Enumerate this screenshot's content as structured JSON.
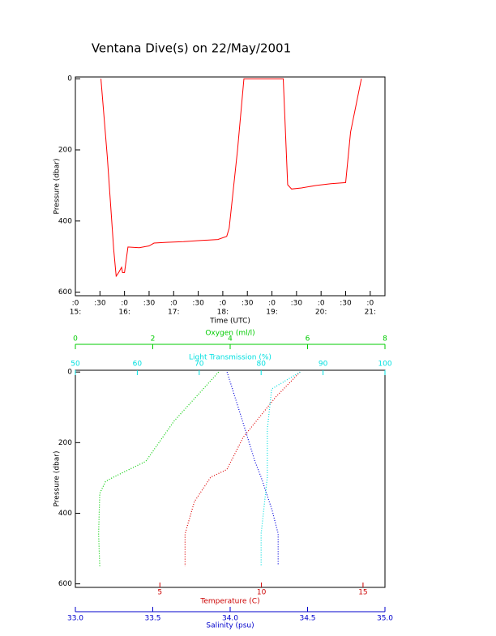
{
  "chart_data": [
    {
      "type": "line",
      "title": "Ventana Dive(s) on 22/May/2001",
      "x_label": "Time (UTC)",
      "y_label": "Pressure (dbar)",
      "xlim": [
        15,
        21.3
      ],
      "ylim": [
        -5,
        610
      ],
      "y_inverted": true,
      "xticks": [
        {
          "value": 15,
          "label": ":0"
        },
        {
          "value": 15.5,
          "label": ":30"
        },
        {
          "value": 16,
          "label": ":0"
        },
        {
          "value": 16.5,
          "label": ":30"
        },
        {
          "value": 17,
          "label": ":0"
        },
        {
          "value": 17.5,
          "label": ":30"
        },
        {
          "value": 18,
          "label": ":0"
        },
        {
          "value": 18.5,
          "label": ":30"
        },
        {
          "value": 19,
          "label": ":0"
        },
        {
          "value": 19.5,
          "label": ":30"
        },
        {
          "value": 20,
          "label": ":0"
        },
        {
          "value": 20.5,
          "label": ":30"
        },
        {
          "value": 21,
          "label": ":0"
        }
      ],
      "xticks_hours": [
        {
          "value": 15,
          "label": "15:"
        },
        {
          "value": 16,
          "label": "16:"
        },
        {
          "value": 17,
          "label": "17:"
        },
        {
          "value": 18,
          "label": "18:"
        },
        {
          "value": 19,
          "label": "19:"
        },
        {
          "value": 20,
          "label": "20:"
        },
        {
          "value": 21,
          "label": "21:"
        }
      ],
      "yticks": [
        0,
        200,
        400,
        600
      ],
      "series": [
        {
          "color": "#ff0000",
          "x": [
            15.52,
            15.65,
            15.78,
            15.83,
            15.88,
            15.94,
            15.96,
            16.0,
            16.07,
            16.3,
            16.5,
            16.6,
            16.85,
            17.2,
            17.5,
            17.9,
            18.08,
            18.13,
            18.3,
            18.43,
            19.23,
            19.32,
            19.4,
            19.6,
            19.9,
            20.2,
            20.5,
            20.6,
            20.82
          ],
          "values": [
            0,
            220,
            480,
            555,
            545,
            530,
            545,
            545,
            473,
            475,
            470,
            462,
            460,
            458,
            455,
            452,
            443,
            420,
            200,
            0,
            0,
            298,
            310,
            307,
            300,
            295,
            292,
            150,
            0
          ]
        }
      ]
    },
    {
      "type": "profile",
      "y_label": "Pressure (dbar)",
      "ylim": [
        -5,
        610
      ],
      "y_inverted": true,
      "yticks": [
        0,
        200,
        400,
        600
      ],
      "axes": {
        "temperature": {
          "label": "Temperature (C)",
          "color": "#cc0000",
          "lim": [
            0.84,
            16.08
          ],
          "ticks": [
            5,
            10,
            15
          ]
        },
        "salinity": {
          "label": "Salinity (psu)",
          "color": "#0000cc",
          "lim": [
            33.0,
            35.0
          ],
          "ticks": [
            {
              "value": 33,
              "label": "33.0"
            },
            {
              "value": 33.5,
              "label": "33.5"
            },
            {
              "value": 34,
              "label": "34.0"
            },
            {
              "value": 34.5,
              "label": "34.5"
            },
            {
              "value": 35,
              "label": "35.0"
            }
          ]
        },
        "oxygen": {
          "label": "Oxygen (ml/l)",
          "color": "#00cc00",
          "lim": [
            0,
            8
          ],
          "ticks": [
            0,
            2,
            4,
            6,
            8
          ]
        },
        "transmission": {
          "label": "Light Transmission (%)",
          "color": "#00e0e0",
          "lim": [
            50,
            100
          ],
          "ticks": [
            50,
            60,
            70,
            80,
            90,
            100
          ]
        }
      },
      "series": [
        {
          "axis": "oxygen",
          "color": "#00cc00",
          "x": [
            3.7,
            2.55,
            1.82,
            0.98,
            0.78,
            0.63,
            0.6,
            0.63
          ],
          "values": [
            0,
            139,
            253,
            298,
            310,
            344,
            458,
            550
          ]
        },
        {
          "axis": "temperature",
          "color": "#dd0000",
          "x": [
            11.9,
            10.7,
            9.1,
            8.3,
            7.5,
            6.7,
            6.24,
            6.24
          ],
          "values": [
            0,
            71,
            185,
            276,
            298,
            367,
            458,
            550
          ]
        },
        {
          "axis": "salinity",
          "color": "#0000dd",
          "x": [
            33.98,
            34.08,
            34.16,
            34.2,
            34.27,
            34.31,
            34.31
          ],
          "values": [
            0,
            139,
            253,
            298,
            390,
            458,
            548
          ]
        },
        {
          "axis": "transmission",
          "color": "#00dddd",
          "x": [
            86.3,
            81.7,
            81,
            81,
            80,
            80
          ],
          "values": [
            0,
            48,
            162,
            298,
            458,
            548
          ]
        }
      ]
    }
  ]
}
